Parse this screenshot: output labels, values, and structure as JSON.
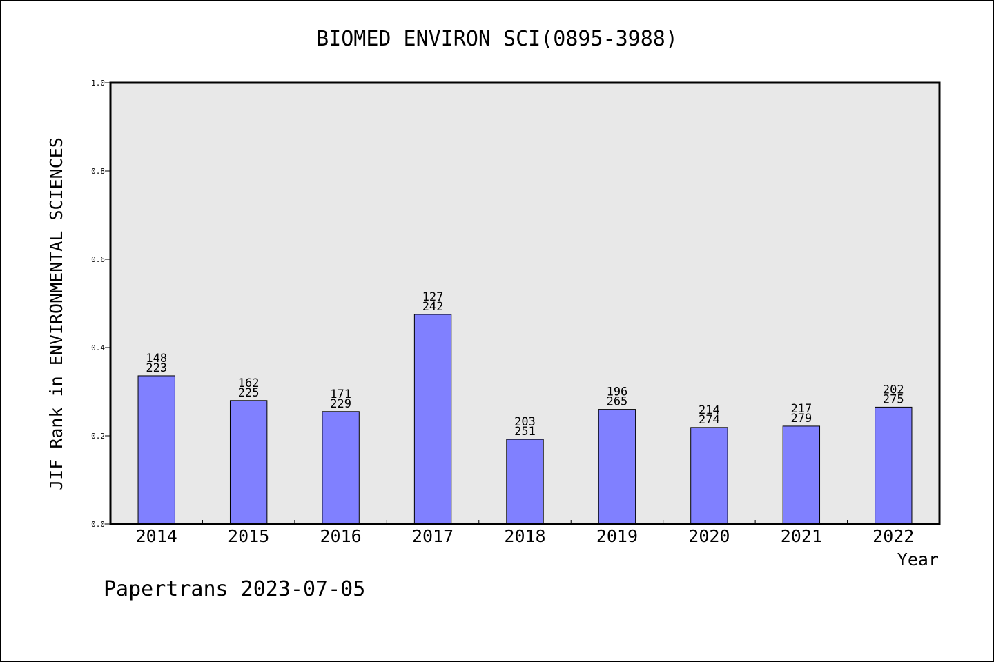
{
  "chart_data": {
    "type": "bar",
    "title": "BIOMED ENVIRON SCI(0895-3988)",
    "xlabel": "Year",
    "ylabel": "JIF Rank in ENVIRONMENTAL SCIENCES",
    "ylim": [
      0,
      1.0
    ],
    "yticks": [
      "0.0",
      "0.2",
      "0.4",
      "0.6",
      "0.8",
      "1.0"
    ],
    "categories": [
      "2014",
      "2015",
      "2016",
      "2017",
      "2018",
      "2019",
      "2020",
      "2021",
      "2022"
    ],
    "values": [
      0.336,
      0.28,
      0.255,
      0.475,
      0.192,
      0.26,
      0.219,
      0.222,
      0.265
    ],
    "ranks": [
      "148",
      "162",
      "171",
      "127",
      "203",
      "196",
      "214",
      "217",
      "202"
    ],
    "totals": [
      "223",
      "225",
      "229",
      "242",
      "251",
      "265",
      "274",
      "279",
      "275"
    ],
    "bar_color": "#8080ff",
    "plot_background": "#e8e8e8",
    "grid": false,
    "legend": "none"
  },
  "footer": "Papertrans 2023-07-05"
}
